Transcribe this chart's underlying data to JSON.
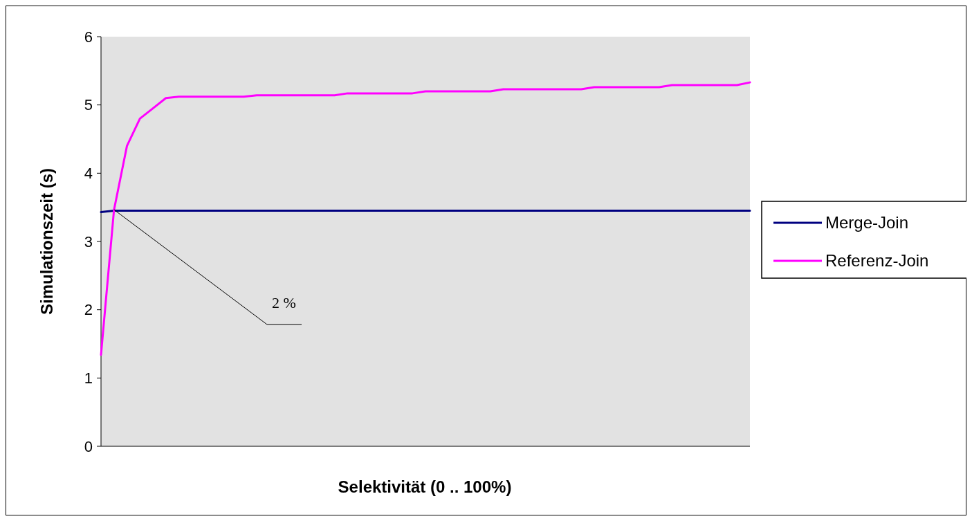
{
  "chart_data": {
    "type": "line",
    "xlabel": "Selektivität (0 .. 100%)",
    "ylabel": "Simulationszeit (s)",
    "ylim": [
      0,
      6
    ],
    "yticks": [
      0,
      1,
      2,
      3,
      4,
      5,
      6
    ],
    "grid": false,
    "legend": "right",
    "marker": "none",
    "line_style": "solid",
    "categories": [
      null,
      null,
      null,
      null,
      null,
      null,
      null,
      null,
      null,
      null,
      null,
      null,
      null,
      null,
      null,
      null,
      null,
      null,
      null,
      null,
      null,
      null,
      null,
      null,
      null,
      null,
      null,
      null,
      null,
      null,
      null,
      null,
      null,
      null,
      null,
      null,
      null,
      null,
      null,
      null,
      null,
      null,
      null,
      null,
      null,
      null,
      null,
      null,
      null,
      null,
      null
    ],
    "series": [
      {
        "name": "Merge-Join",
        "color": "#000080",
        "values": [
          3.43,
          3.45,
          3.45,
          3.45,
          3.45,
          3.45,
          3.45,
          3.45,
          3.45,
          3.45,
          3.45,
          3.45,
          3.45,
          3.45,
          3.45,
          3.45,
          3.45,
          3.45,
          3.45,
          3.45,
          3.45,
          3.45,
          3.45,
          3.45,
          3.45,
          3.45,
          3.45,
          3.45,
          3.45,
          3.45,
          3.45,
          3.45,
          3.45,
          3.45,
          3.45,
          3.45,
          3.45,
          3.45,
          3.45,
          3.45,
          3.45,
          3.45,
          3.45,
          3.45,
          3.45,
          3.45,
          3.45,
          3.45,
          3.45,
          3.45,
          3.45
        ]
      },
      {
        "name": "Referenz-Join",
        "color": "#ff00ff",
        "values": [
          1.34,
          3.46,
          4.4,
          4.8,
          4.95,
          5.1,
          5.12,
          5.12,
          5.12,
          5.12,
          5.12,
          5.12,
          5.14,
          5.14,
          5.14,
          5.14,
          5.14,
          5.14,
          5.14,
          5.17,
          5.17,
          5.17,
          5.17,
          5.17,
          5.17,
          5.2,
          5.2,
          5.2,
          5.2,
          5.2,
          5.2,
          5.23,
          5.23,
          5.23,
          5.23,
          5.23,
          5.23,
          5.23,
          5.26,
          5.26,
          5.26,
          5.26,
          5.26,
          5.26,
          5.29,
          5.29,
          5.29,
          5.29,
          5.29,
          5.29,
          5.33
        ]
      }
    ],
    "annotations": [
      "2 %"
    ]
  }
}
